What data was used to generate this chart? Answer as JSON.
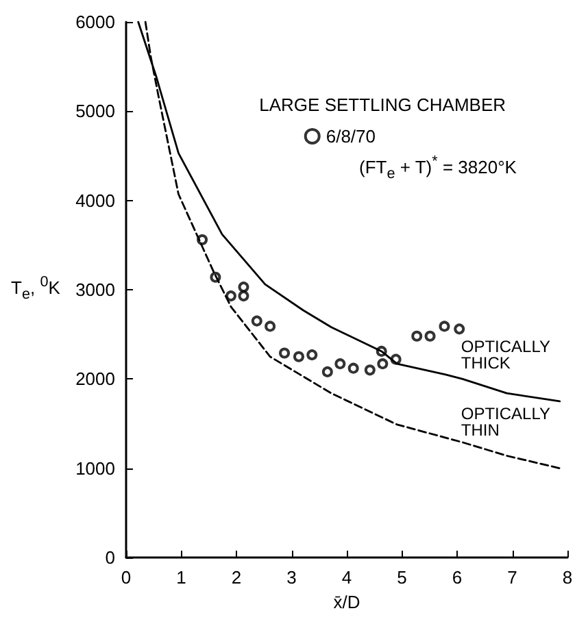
{
  "chart_data": {
    "type": "line",
    "xlabel": "x̄/D",
    "ylabel": "T$_{e}$, $^{0}$K",
    "legend_title": "LARGE SETTLING CHAMBER",
    "legend": "top right",
    "annotations": [
      "(FT$_{e}$ + T)$^{*}$ = 3820°K"
    ],
    "xlim": [
      0,
      8
    ],
    "ylim": [
      0,
      6000
    ],
    "xticks": [
      0,
      1,
      2,
      3,
      4,
      5,
      6,
      7,
      8
    ],
    "yticks": [
      0,
      1000,
      2000,
      3000,
      4000,
      5000,
      6000
    ],
    "grid": false,
    "series": [
      {
        "name": "OPTICALLY THICK",
        "line_style": "solid",
        "color": "#000000",
        "x": [
          0.22,
          0.55,
          0.95,
          1.74,
          2.52,
          3.21,
          3.72,
          4.63,
          4.91,
          5.79,
          6.1,
          6.9,
          7.86
        ],
        "values": [
          6000,
          5380,
          4530,
          3620,
          3060,
          2770,
          2580,
          2310,
          2170,
          2050,
          2000,
          1840,
          1750
        ]
      },
      {
        "name": "OPTICALLY THIN",
        "line_style": "dashed",
        "color": "#000000",
        "x": [
          0.35,
          0.45,
          0.59,
          0.95,
          1.58,
          1.9,
          2.61,
          3.72,
          4.91,
          6.1,
          6.9,
          7.86
        ],
        "values": [
          6000,
          5600,
          5160,
          4070,
          3210,
          2810,
          2250,
          1840,
          1490,
          1290,
          1140,
          1000
        ]
      },
      {
        "name": "6/8/70",
        "type": "scatter",
        "marker": "circle",
        "color": "#000000",
        "x": [
          1.38,
          1.62,
          1.9,
          2.13,
          2.13,
          2.37,
          2.61,
          2.87,
          3.13,
          3.37,
          3.65,
          3.88,
          4.12,
          4.42,
          4.63,
          4.65,
          4.89,
          5.27,
          5.51,
          5.77,
          6.04
        ],
        "values": [
          3560,
          3140,
          2930,
          3030,
          2930,
          2650,
          2590,
          2290,
          2250,
          2270,
          2080,
          2170,
          2120,
          2100,
          2310,
          2170,
          2220,
          2480,
          2480,
          2590,
          2560
        ]
      }
    ]
  }
}
